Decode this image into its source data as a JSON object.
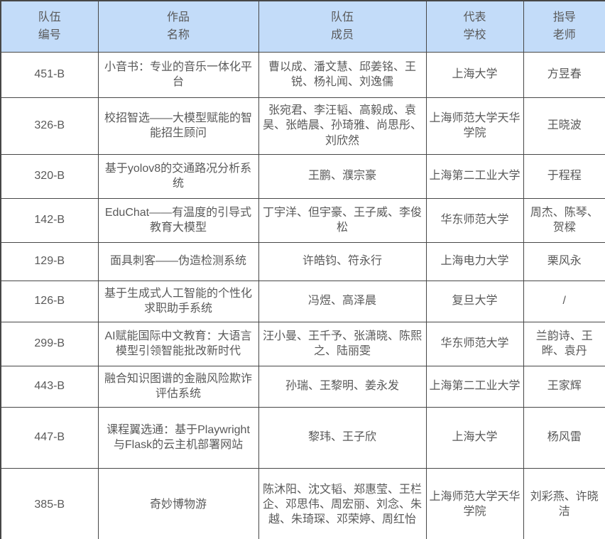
{
  "colors": {
    "header_bg": "#c3dcf9",
    "border": "#474747",
    "text": "#595959"
  },
  "table": {
    "columns": [
      {
        "id": "team-id",
        "lines": [
          "队伍",
          "编号"
        ]
      },
      {
        "id": "work-name",
        "lines": [
          "作品",
          "名称"
        ]
      },
      {
        "id": "members",
        "lines": [
          "队伍",
          "成员"
        ]
      },
      {
        "id": "school",
        "lines": [
          "代表",
          "学校"
        ]
      },
      {
        "id": "advisor",
        "lines": [
          "指导",
          "老师"
        ]
      }
    ],
    "rows": [
      {
        "team_id": "451-B",
        "work_name": "小音书：专业的音乐一体化平台",
        "members": "曹以成、潘文慧、邱姜铭、王锐、杨礼闻、刘逸儒",
        "school": "上海大学",
        "advisor": "方昱春"
      },
      {
        "team_id": "326-B",
        "work_name": "校招智选——大模型赋能的智能招生顾问",
        "members": "张宛君、李汪韬、高毅成、袁昊、张皓晨、孙琦雅、尚思彤、刘欣然",
        "school": "上海师范大学天华学院",
        "advisor": "王晓波"
      },
      {
        "team_id": "320-B",
        "work_name": "基于yolov8的交通路况分析系统",
        "members": "王鹏、濮宗豪",
        "school": "上海第二工业大学",
        "advisor": "于程程"
      },
      {
        "team_id": "142-B",
        "work_name": "EduChat——有温度的引导式教育大模型",
        "members": "丁宇洋、但宇豪、王子威、李俊松",
        "school": "华东师范大学",
        "advisor": "周杰、陈琴、贺樑"
      },
      {
        "team_id": "129-B",
        "work_name": "面具刺客——伪造检测系统",
        "members": "许皓钧、符永行",
        "school": "上海电力大学",
        "advisor": "栗风永"
      },
      {
        "team_id": "126-B",
        "work_name": "基于生成式人工智能的个性化求职助手系统",
        "members": "冯煜、高泽晨",
        "school": "复旦大学",
        "advisor": "/"
      },
      {
        "team_id": "299-B",
        "work_name": "AI赋能国际中文教育：大语言模型引领智能批改新时代",
        "members": "汪小曼、王千予、张潇晓、陈熙之、陆丽雯",
        "school": "华东师范大学",
        "advisor": "兰韵诗、王晔、袁丹"
      },
      {
        "team_id": "443-B",
        "work_name": "融合知识图谱的金融风险欺诈评估系统",
        "members": "孙瑞、王黎明、姜永发",
        "school": "上海第二工业大学",
        "advisor": "王家辉"
      },
      {
        "team_id": "447-B",
        "work_name": "课程翼选通：基于Playwright与Flask的云主机部署网站",
        "members": "黎玮、王子欣",
        "school": "上海大学",
        "advisor": "杨风雷"
      },
      {
        "team_id": "385-B",
        "work_name": "奇妙博物游",
        "members": "陈沐阳、沈文韬、郑惠莹、王栏企、邓思伟、周宏丽、刘念、朱越、朱琦琛、邓荣婷、周红怡",
        "school": "上海师范大学天华学院",
        "advisor": "刘彩燕、许晓洁"
      }
    ]
  }
}
